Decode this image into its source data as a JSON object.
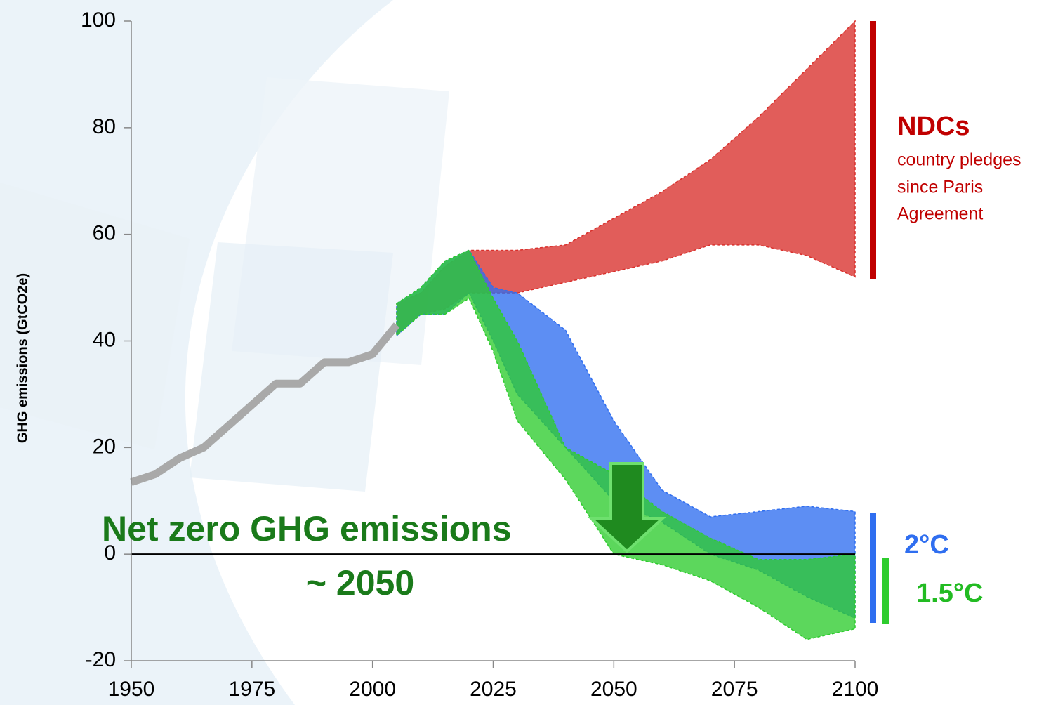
{
  "chart_data": {
    "type": "line",
    "y_label": "GHG emissions (GtCO2e)",
    "xlim": [
      1950,
      2100
    ],
    "ylim": [
      -20,
      100
    ],
    "xticks": [
      1950,
      1975,
      2000,
      2025,
      2050,
      2075,
      2100
    ],
    "yticks": [
      -20,
      0,
      20,
      40,
      60,
      80,
      100
    ],
    "series": [
      {
        "color": "#a9a9a9",
        "x": [
          1950,
          1955,
          1960,
          1965,
          1970,
          1975,
          1980,
          1985,
          1990,
          1995,
          2000,
          2005
        ],
        "values": [
          13.5,
          15,
          18,
          20,
          24,
          28,
          32,
          32,
          36,
          36,
          37.5,
          43
        ]
      }
    ],
    "bands": [
      {
        "name": "NDCs",
        "color": "#d9302c",
        "x": [
          2005,
          2010,
          2015,
          2020,
          2030,
          2040,
          2050,
          2060,
          2070,
          2080,
          2090,
          2100
        ],
        "upper": [
          47,
          49,
          54,
          57,
          57,
          58,
          63,
          68,
          74,
          82,
          91,
          100
        ],
        "lower": [
          41,
          45,
          46,
          49,
          49,
          51,
          53,
          55,
          58,
          58,
          56,
          52
        ]
      },
      {
        "name": "2°C",
        "color": "#2f6ef0",
        "x": [
          2005,
          2010,
          2015,
          2020,
          2025,
          2030,
          2040,
          2050,
          2060,
          2070,
          2080,
          2090,
          2100
        ],
        "upper": [
          47,
          50,
          55,
          57,
          50,
          49,
          42,
          25,
          12,
          7,
          8,
          9,
          8
        ],
        "lower": [
          41,
          45,
          45,
          49,
          40,
          30,
          20,
          10,
          6,
          0,
          -3,
          -8,
          -12
        ]
      },
      {
        "name": "1.5°C",
        "color": "#2ecc2e",
        "x": [
          2005,
          2010,
          2015,
          2020,
          2025,
          2030,
          2040,
          2050,
          2060,
          2070,
          2080,
          2090,
          2100
        ],
        "upper": [
          47,
          50,
          55,
          57,
          48,
          40,
          20,
          15,
          8,
          3,
          -1,
          -1,
          0
        ],
        "lower": [
          41,
          45,
          45,
          48,
          38,
          25,
          14,
          0,
          -2,
          -5,
          -10,
          -16,
          -14
        ]
      }
    ],
    "annotations": {
      "ndc_note": [
        "country pledges",
        "since Paris",
        "Agreement"
      ],
      "net_zero": "Net zero GHG emissions",
      "net_zero_year": "~ 2050"
    }
  }
}
